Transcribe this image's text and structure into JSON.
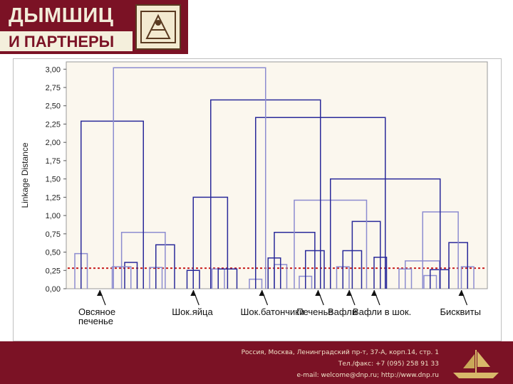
{
  "logo": {
    "line1": "ДЫМШИЦ",
    "line2": "И ПАРТНЕРЫ"
  },
  "colors": {
    "brand": "#7b1225",
    "footer_text": "#f0e2c8",
    "link_dark": "#2a2a9a",
    "link_light": "#8c8cd0",
    "cut_line": "#c81e1e",
    "plot_bg": "#fbf7ee"
  },
  "chart_data": {
    "type": "dendrogram",
    "ylabel": "Linkage Distance",
    "yticks": [
      "3,00",
      "2,75",
      "2,50",
      "2,25",
      "2,00",
      "1,75",
      "1,50",
      "1,25",
      "1,00",
      "0,75",
      "0,50",
      "0,25",
      "0,00"
    ],
    "ylim": [
      0,
      3.1
    ],
    "cut_threshold": 0.28,
    "grid": false,
    "leaves": 28,
    "links": [
      {
        "x1": 1,
        "x2": 2,
        "h": 0.48,
        "tone": "light"
      },
      {
        "x1": 5,
        "x2": 6,
        "h": 0.36,
        "tone": "dark"
      },
      {
        "x1": 4,
        "x2": 5.5,
        "h": 0.3,
        "tone": "light"
      },
      {
        "x1": 7,
        "x2": 8,
        "h": 0.29,
        "tone": "light"
      },
      {
        "x1": 7.5,
        "x2": 9,
        "h": 0.6,
        "tone": "dark"
      },
      {
        "x1": 4.75,
        "x2": 8.25,
        "h": 0.77,
        "tone": "light"
      },
      {
        "x1": 1.5,
        "x2": 6.5,
        "h": 2.29,
        "tone": "dark"
      },
      {
        "x1": 10,
        "x2": 11,
        "h": 0.25,
        "tone": "dark"
      },
      {
        "x1": 12,
        "x2": 13,
        "h": 0.27,
        "tone": "light"
      },
      {
        "x1": 12.5,
        "x2": 14,
        "h": 0.27,
        "tone": "dark"
      },
      {
        "x1": 10.5,
        "x2": 13.25,
        "h": 1.25,
        "tone": "dark"
      },
      {
        "x1": 15,
        "x2": 16,
        "h": 0.13,
        "tone": "light"
      },
      {
        "x1": 17,
        "x2": 18,
        "h": 0.33,
        "tone": "light"
      },
      {
        "x1": 16.5,
        "x2": 17.5,
        "h": 0.42,
        "tone": "dark"
      },
      {
        "x1": 19,
        "x2": 20,
        "h": 0.17,
        "tone": "light"
      },
      {
        "x1": 19.5,
        "x2": 21,
        "h": 0.52,
        "tone": "dark"
      },
      {
        "x1": 17,
        "x2": 20.25,
        "h": 0.77,
        "tone": "dark"
      },
      {
        "x1": 22,
        "x2": 23,
        "h": 0.3,
        "tone": "light"
      },
      {
        "x1": 22.5,
        "x2": 24,
        "h": 0.52,
        "tone": "dark"
      },
      {
        "x1": 25,
        "x2": 26,
        "h": 0.43,
        "tone": "dark"
      },
      {
        "x1": 23.25,
        "x2": 25.5,
        "h": 0.92,
        "tone": "dark"
      },
      {
        "x1": 18.6,
        "x2": 24.4,
        "h": 1.21,
        "tone": "light"
      },
      {
        "x1": 27,
        "x2": 28,
        "h": 0.27,
        "tone": "light"
      },
      {
        "x1": 29,
        "x2": 30,
        "h": 0.18,
        "tone": "light"
      },
      {
        "x1": 29.5,
        "x2": 31,
        "h": 0.26,
        "tone": "dark"
      },
      {
        "x1": 27.5,
        "x2": 30.25,
        "h": 0.38,
        "tone": "light"
      },
      {
        "x1": 32,
        "x2": 33,
        "h": 0.3,
        "tone": "light"
      },
      {
        "x1": 31,
        "x2": 32.5,
        "h": 0.63,
        "tone": "dark"
      },
      {
        "x1": 28.9,
        "x2": 31.75,
        "h": 1.05,
        "tone": "light"
      },
      {
        "x1": 21.5,
        "x2": 30.3,
        "h": 1.5,
        "tone": "dark"
      },
      {
        "x1": 15.5,
        "x2": 25.9,
        "h": 2.34,
        "tone": "dark"
      },
      {
        "x1": 11.9,
        "x2": 20.7,
        "h": 2.58,
        "tone": "dark"
      },
      {
        "x1": 4.1,
        "x2": 16.3,
        "h": 3.02,
        "tone": "light"
      }
    ],
    "annotations": [
      {
        "text": "Овсяное\nпеченье",
        "x": 3
      },
      {
        "text": "Шок.яйца",
        "x": 10.5
      },
      {
        "text": "Шок.батончики",
        "x": 16
      },
      {
        "text": "Печенье",
        "x": 20.5
      },
      {
        "text": "Вафли",
        "x": 23
      },
      {
        "text": "Вафли в шок.",
        "x": 25
      },
      {
        "text": "Бисквиты",
        "x": 32
      }
    ]
  },
  "footer": {
    "address": "Россия, Москва, Ленинградский пр-т, 37-А, корп.14, стр. 1",
    "phone": "Тел./факс: +7 (095) 258 91 33",
    "contacts": "e-mail: welcome@dnp.ru; http://www.dnp.ru"
  }
}
